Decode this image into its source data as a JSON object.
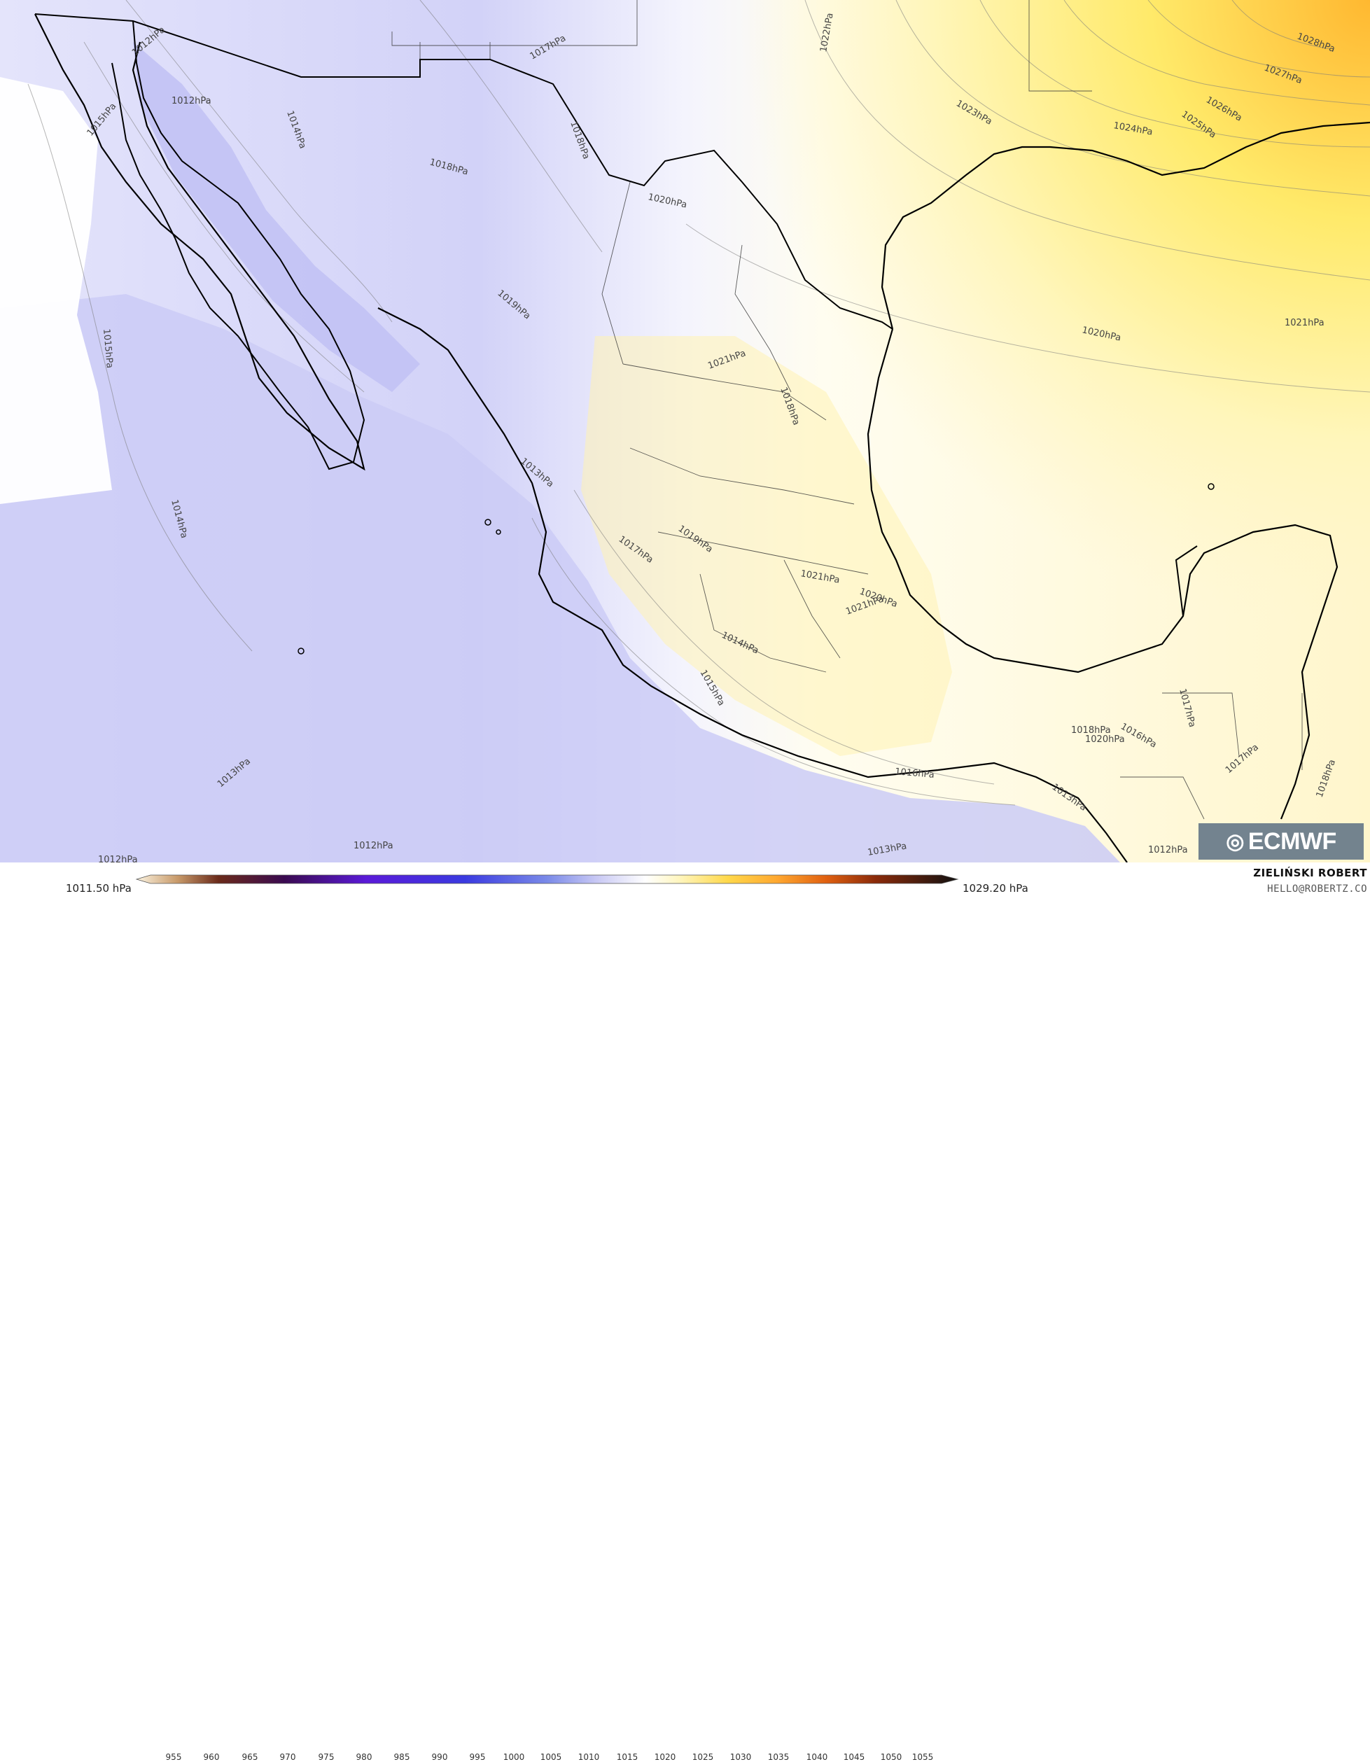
{
  "map": {
    "isobar_labels": [
      {
        "text": "1012hPa"
      },
      {
        "text": "1012hPa"
      },
      {
        "text": "1015hPa"
      },
      {
        "text": "1014hPa"
      },
      {
        "text": "1015hPa"
      },
      {
        "text": "1014hPa"
      },
      {
        "text": "1013hPa"
      },
      {
        "text": "1012hPa"
      },
      {
        "text": "1012hPa"
      },
      {
        "text": "1017hPa"
      },
      {
        "text": "1018hPa"
      },
      {
        "text": "1018hPa"
      },
      {
        "text": "1022hPa"
      },
      {
        "text": "1020hPa"
      },
      {
        "text": "1023hPa"
      },
      {
        "text": "1024hPa"
      },
      {
        "text": "1025hPa"
      },
      {
        "text": "1026hPa"
      },
      {
        "text": "1027hPa"
      },
      {
        "text": "1028hPa"
      },
      {
        "text": "1019hPa"
      },
      {
        "text": "1021hPa"
      },
      {
        "text": "1018hPa"
      },
      {
        "text": "1020hPa"
      },
      {
        "text": "1021hPa"
      },
      {
        "text": "1013hPa"
      },
      {
        "text": "1019hPa"
      },
      {
        "text": "1017hPa"
      },
      {
        "text": "1021hPa"
      },
      {
        "text": "1020hPa"
      },
      {
        "text": "1021hPa"
      },
      {
        "text": "1014hPa"
      },
      {
        "text": "1015hPa"
      },
      {
        "text": "1016hPa"
      },
      {
        "text": "1013hPa"
      },
      {
        "text": "1013hPa"
      },
      {
        "text": "1018hPa"
      },
      {
        "text": "1020hPa"
      },
      {
        "text": "1016hPa"
      },
      {
        "text": "1017hPa"
      },
      {
        "text": "1017hPa"
      },
      {
        "text": "1018hPa"
      },
      {
        "text": "1012hPa"
      }
    ]
  },
  "legend": {
    "min_label": "1011.50 hPa",
    "max_label": "1029.20 hPa",
    "ticks": [
      "955",
      "960",
      "965",
      "970",
      "975",
      "980",
      "985",
      "990",
      "995",
      "1000",
      "1005",
      "1010",
      "1015",
      "1020",
      "1025",
      "1030",
      "1035",
      "1040",
      "1045",
      "1050",
      "1055"
    ]
  },
  "author": {
    "name": "ZIELIŃSKI ROBERT",
    "email": "HELLO@ROBERTZ.CO"
  },
  "logo": {
    "text": "ECMWF"
  },
  "colors": {
    "low_pressure": "#c9c9f7",
    "mid_pressure": "#fffce6",
    "high_pressure": "#ffd84a",
    "coastline": "#000000"
  }
}
